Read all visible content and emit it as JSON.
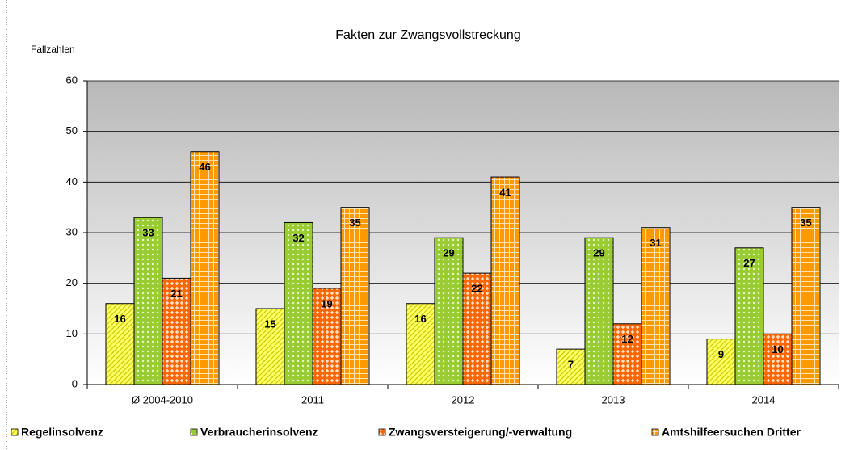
{
  "chart_data": {
    "type": "bar",
    "title": "Fakten zur Zwangsvollstreckung",
    "y_label": "Fallzahlen",
    "categories": [
      "Ø 2004-2010",
      "2011",
      "2012",
      "2013",
      "2014"
    ],
    "series": [
      {
        "name": "Regelinsolvenz",
        "color": "#ffff66",
        "values": [
          16,
          15,
          16,
          7,
          9
        ]
      },
      {
        "name": "Verbraucherinsolvenz",
        "color": "#99cc33",
        "values": [
          33,
          32,
          29,
          29,
          27
        ]
      },
      {
        "name": "Zwangsversteigerung/-verwaltung",
        "color": "#ff6600",
        "values": [
          21,
          19,
          22,
          12,
          10
        ]
      },
      {
        "name": "Amtshilfeersuchen Dritter",
        "color": "#ff9900",
        "values": [
          46,
          35,
          41,
          31,
          35
        ]
      }
    ],
    "ylim": [
      0,
      60
    ],
    "yticks": [
      0,
      10,
      20,
      30,
      40,
      50,
      60
    ],
    "grid": true,
    "legend": "bottom"
  }
}
